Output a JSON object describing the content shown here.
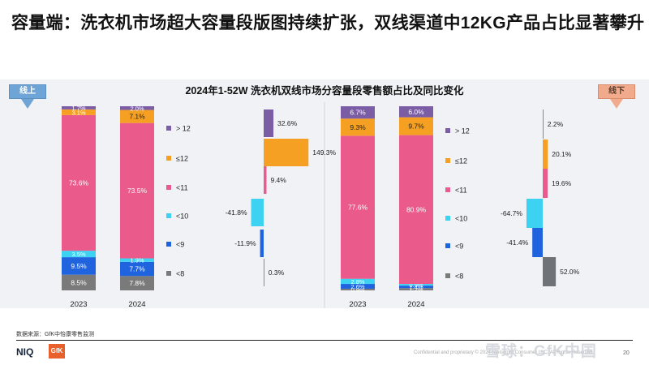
{
  "page": {
    "title": "容量端：洗衣机市场超大容量段版图持续扩张，双线渠道中12KG产品占比显著攀升",
    "source": "数据来源：GfK中怡康零售监测",
    "confidential": "Confidential and proprietary © 2024 NielsenIQ Consumer LLC. All Rights Reserved.",
    "page_number": "20",
    "watermark": "雪球：GfK中国",
    "brand_niq": "NIQ",
    "brand_gfk": "GfK"
  },
  "colors": {
    "gt12": "#7b5da6",
    "le12": "#f5a023",
    "lt11": "#ea5a8a",
    "lt10": "#3dd2f2",
    "lt9": "#1f63de",
    "lt8": "#7a7a7a",
    "gt12_change": "#7b5da6",
    "le12_change": "#f5a023",
    "lt11_change": "#ea5a8a",
    "lt10_change": "#3dd2f2",
    "lt9_change": "#1f63de",
    "lt8_change": "#6f7277"
  },
  "chart_data": [
    {
      "type": "bar",
      "stacked": true,
      "title": "2024年1-52W 洗衣机双线市场分容量段零售额占比及同比变化",
      "channel": "线上",
      "categories": [
        "2023",
        "2024"
      ],
      "legend": [
        "> 12",
        "≤12",
        "<11",
        "<10",
        "<9",
        "<8"
      ],
      "series": [
        {
          "name": "<8",
          "color_key": "lt8",
          "values": [
            8.5,
            7.8
          ]
        },
        {
          "name": "<9",
          "color_key": "lt9",
          "values": [
            9.5,
            7.7
          ]
        },
        {
          "name": "<10",
          "color_key": "lt10",
          "values": [
            3.5,
            1.9
          ]
        },
        {
          "name": "<11",
          "color_key": "lt11",
          "values": [
            73.6,
            73.5
          ]
        },
        {
          "name": "≤12",
          "color_key": "le12",
          "values": [
            3.1,
            7.1
          ]
        },
        {
          "name": "> 12",
          "color_key": "gt12",
          "values": [
            1.7,
            2.0
          ]
        }
      ],
      "labels": [
        [
          "8.5%",
          "9.5%",
          "3.5%",
          "73.6%",
          "3.1%",
          "1.7%"
        ],
        [
          "7.8%",
          "7.7%",
          "1.9%",
          "73.5%",
          "7.1%",
          "2.0%"
        ]
      ]
    },
    {
      "type": "bar",
      "orientation": "horizontal",
      "channel": "线上",
      "subtitle": "同比变化",
      "categories": [
        "> 12",
        "≤12",
        "<11",
        "<10",
        "<9",
        "<8"
      ],
      "values": [
        32.6,
        149.3,
        9.4,
        -41.8,
        -11.9,
        0.3
      ],
      "labels": [
        "32.6%",
        "149.3%",
        "9.4%",
        "-41.8%",
        "-11.9%",
        "0.3%"
      ]
    },
    {
      "type": "bar",
      "stacked": true,
      "channel": "线下",
      "categories": [
        "2023",
        "2024"
      ],
      "series": [
        {
          "name": "<8",
          "color_key": "lt8",
          "values": [
            0.9,
            1.2
          ]
        },
        {
          "name": "<9",
          "color_key": "lt9",
          "values": [
            2.6,
            1.4
          ]
        },
        {
          "name": "<10",
          "color_key": "lt10",
          "values": [
            2.8,
            0.9
          ]
        },
        {
          "name": "<11",
          "color_key": "lt11",
          "values": [
            77.6,
            80.9
          ]
        },
        {
          "name": "≤12",
          "color_key": "le12",
          "values": [
            9.3,
            9.7
          ]
        },
        {
          "name": "> 12",
          "color_key": "gt12",
          "values": [
            6.7,
            6.0
          ]
        }
      ],
      "labels": [
        [
          "0.9%",
          "2.6%",
          "2.8%",
          "77.6%",
          "9.3%",
          "6.7%"
        ],
        [
          "1.2%",
          "1.4%",
          "0.9%",
          "80.9%",
          "9.7%",
          "6.0%"
        ]
      ]
    },
    {
      "type": "bar",
      "orientation": "horizontal",
      "channel": "线下",
      "subtitle": "同比变化",
      "categories": [
        "> 12",
        "≤12",
        "<11",
        "<10",
        "<9",
        "<8"
      ],
      "values": [
        2.2,
        20.1,
        19.6,
        -64.7,
        -41.4,
        52.0
      ],
      "labels": [
        "2.2%",
        "20.1%",
        "19.6%",
        "-64.7%",
        "-41.4%",
        "52.0%"
      ]
    }
  ]
}
